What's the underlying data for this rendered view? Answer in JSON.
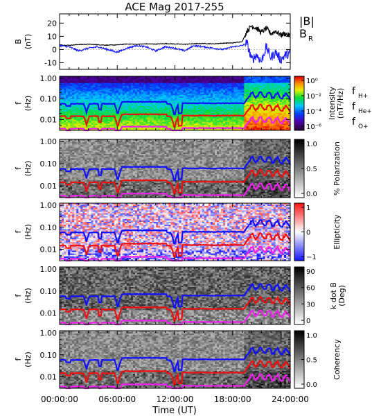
{
  "title": "ACE Mag 2017-255",
  "colors": {
    "H": "#1010ff",
    "He": "#ee1010",
    "O": "#ee20ee",
    "B_total": "#000000",
    "B_R": "#1a1aff"
  },
  "x_axis": {
    "label": "Time (UT)",
    "ticks": [
      "00:00:00",
      "06:00:00",
      "12:00:00",
      "18:00:00",
      "24:00:00"
    ]
  },
  "chart_data": [
    {
      "type": "line",
      "panel": "B",
      "ylabel": [
        "B",
        "(nT)"
      ],
      "ylim": [
        -15,
        27
      ],
      "yticks": [
        "20",
        "10",
        "0",
        "-10"
      ],
      "ytick_values": [
        20,
        10,
        0,
        -10
      ],
      "xlim": [
        0,
        24
      ],
      "legend": [
        "|B|",
        "B",
        "R"
      ],
      "series": [
        {
          "name": "|B|",
          "color": "#000000",
          "x": [
            0,
            1,
            2,
            3,
            4,
            5,
            6,
            7,
            8,
            9,
            10,
            11,
            12,
            13,
            14,
            15,
            16,
            17,
            18,
            19,
            19.5,
            20,
            20.5,
            21,
            21.5,
            22,
            22.5,
            23,
            23.5,
            24
          ],
          "y": [
            3.5,
            3.2,
            3.8,
            4,
            3.6,
            3.3,
            3.5,
            4.2,
            4,
            4.3,
            4.1,
            4.5,
            4.2,
            4,
            4.4,
            4.6,
            4.3,
            4.8,
            5,
            6,
            14,
            18,
            16,
            13,
            16,
            12,
            14,
            11,
            12,
            10
          ]
        },
        {
          "name": "B_R",
          "color": "#1a1aff",
          "x": [
            0,
            1,
            2,
            3,
            4,
            5,
            6,
            7,
            8,
            9,
            10,
            11,
            12,
            13,
            14,
            15,
            16,
            17,
            18,
            19,
            19.5,
            20,
            20.5,
            21,
            21.5,
            22,
            22.5,
            23,
            23.5,
            24
          ],
          "y": [
            3,
            2,
            -1,
            1,
            2,
            0,
            -2,
            1,
            3,
            2,
            -1,
            2,
            1,
            -1,
            3,
            2,
            1,
            0,
            2,
            3,
            5,
            -8,
            -4,
            -9,
            2,
            -6,
            -2,
            -8,
            -4,
            -3
          ]
        }
      ]
    },
    {
      "type": "heatmap",
      "panel": "Intensity",
      "ylabel": [
        "f",
        "(Hz)"
      ],
      "ylim": [
        0.003,
        1.2
      ],
      "yscale": "log",
      "yticks": [
        "1.00",
        "0.10",
        "0.01"
      ],
      "colorbar_label": [
        "Intensity",
        "(nT²/Hz)"
      ],
      "colorbar_ticks": [
        "10⁰",
        "10⁻²",
        "10⁻⁴",
        "10⁻⁶"
      ],
      "legend": [
        "f",
        "H+",
        "f",
        "He+",
        "f",
        "O+"
      ]
    },
    {
      "type": "heatmap",
      "panel": "Polarization",
      "ylabel": [
        "f",
        "(Hz)"
      ],
      "yticks": [
        "1.00",
        "0.10",
        "0.01"
      ],
      "colorbar_label": [
        "% Polarization"
      ],
      "colorbar_ticks": [
        "1.0",
        "0.5",
        "0.0"
      ]
    },
    {
      "type": "heatmap",
      "panel": "Ellipticity",
      "ylabel": [
        "f",
        "(Hz)"
      ],
      "yticks": [
        "1.00",
        "0.10",
        "0.01"
      ],
      "colorbar_label": [
        "Ellipticity"
      ],
      "colorbar_ticks": [
        "1",
        "0",
        "−1"
      ]
    },
    {
      "type": "heatmap",
      "panel": "kdotB",
      "ylabel": [
        "f",
        "(Hz)"
      ],
      "yticks": [
        "1.00",
        "0.10",
        "0.01"
      ],
      "colorbar_label": [
        "k dot B",
        "(Deg)"
      ],
      "colorbar_ticks": [
        "90",
        "60",
        "30",
        "0"
      ]
    },
    {
      "type": "heatmap",
      "panel": "Coherency",
      "ylabel": [
        "f",
        "(Hz)"
      ],
      "yticks": [
        "1.00",
        "0.10",
        "0.01"
      ],
      "colorbar_label": [
        "Coherency"
      ],
      "colorbar_ticks": [
        "1.0",
        "0.5",
        "0.0"
      ]
    }
  ]
}
